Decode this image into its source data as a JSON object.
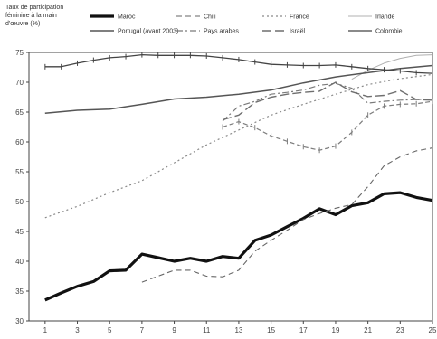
{
  "chart_data": {
    "type": "line",
    "ylabel_lines": [
      "Taux de participation",
      "féminine à la main",
      "d'œuvre (%)"
    ],
    "y_ticks": [
      "30",
      "35",
      "40",
      "45",
      "50",
      "55",
      "60",
      "65",
      "70",
      "75"
    ],
    "x_ticks": [
      "1",
      "3",
      "5",
      "7",
      "9",
      "11",
      "13",
      "15",
      "17",
      "19",
      "21",
      "23",
      "25"
    ],
    "ylim": [
      30,
      75
    ],
    "xlim": [
      0,
      25
    ],
    "grid": false,
    "legend_position": "top",
    "series": [
      {
        "name": "Maroc",
        "color": "#111111",
        "style": "solid-thick",
        "x": [
          1,
          2,
          3,
          4,
          5,
          6,
          7,
          8,
          9,
          10,
          11,
          12,
          13,
          14,
          15,
          16,
          17,
          18,
          19,
          20,
          21,
          22,
          23,
          24,
          25
        ],
        "y": [
          33.5,
          34.7,
          35.8,
          36.6,
          38.4,
          38.5,
          41.2,
          40.6,
          40.0,
          40.5,
          40.0,
          40.8,
          40.5,
          43.5,
          44.4,
          45.8,
          47.2,
          48.8,
          47.8,
          49.3,
          49.8,
          51.3,
          51.5,
          50.7,
          50.2
        ]
      },
      {
        "name": "Chili",
        "color": "#666666",
        "style": "dash",
        "x": [
          7,
          8,
          9,
          10,
          11,
          12,
          13,
          14,
          15,
          16,
          17,
          18,
          19,
          20,
          21,
          22,
          23,
          24,
          25
        ],
        "y": [
          36.5,
          37.5,
          38.5,
          38.5,
          37.5,
          37.4,
          38.5,
          41.7,
          43.5,
          45.2,
          47.0,
          48.0,
          48.9,
          49.5,
          52.5,
          56.0,
          57.5,
          58.5,
          59.0
        ]
      },
      {
        "name": "France",
        "color": "#8a8a8a",
        "style": "dot",
        "x": [
          1,
          3,
          5,
          7,
          9,
          11,
          13,
          15,
          17,
          19,
          21,
          23,
          25
        ],
        "y": [
          47.3,
          49.2,
          51.5,
          53.5,
          56.5,
          59.5,
          62.0,
          64.5,
          66.3,
          68.0,
          69.6,
          70.6,
          71.3
        ]
      },
      {
        "name": "Irlande",
        "color": "#b0b0b0",
        "style": "solid-thin",
        "x": [
          20,
          21,
          22,
          23,
          24,
          25
        ],
        "y": [
          70.5,
          72.0,
          73.2,
          74.0,
          74.5,
          74.6
        ]
      },
      {
        "name": "Portugal (avant 2003)",
        "color": "#555555",
        "style": "solid",
        "x": [
          1,
          3,
          5,
          7,
          9,
          11,
          13,
          15,
          17,
          19,
          21,
          23,
          25
        ],
        "y": [
          64.8,
          65.3,
          65.5,
          66.3,
          67.2,
          67.5,
          68.0,
          68.7,
          69.9,
          70.9,
          71.6,
          72.3,
          72.8
        ]
      },
      {
        "name": "Pays arabes",
        "color": "#7a7a7a",
        "style": "dashdot",
        "x": [
          12,
          13,
          14,
          15,
          16,
          17,
          18,
          19,
          20,
          21,
          22,
          23,
          24,
          25
        ],
        "y": [
          63.5,
          66.0,
          66.8,
          68.0,
          68.3,
          68.7,
          69.5,
          69.8,
          69.0,
          66.5,
          66.8,
          67.0,
          67.1,
          67.2
        ]
      },
      {
        "name": "Israël",
        "color": "#6e6e6e",
        "style": "longdash",
        "x": [
          12,
          13,
          14,
          15,
          16,
          17,
          18,
          19,
          20,
          21,
          22,
          23,
          24,
          25
        ],
        "y": [
          63.7,
          64.5,
          66.6,
          67.5,
          68.0,
          68.3,
          68.5,
          70.0,
          68.4,
          67.6,
          67.8,
          68.6,
          67.1,
          67.0
        ]
      },
      {
        "name": "Colombie",
        "color": "#444444",
        "style": "marker-line",
        "x": [
          1,
          2,
          3,
          4,
          5,
          6,
          7,
          8,
          9,
          10,
          11,
          12,
          13,
          14,
          15,
          16,
          17,
          18,
          19,
          20,
          21,
          22,
          23,
          24,
          25
        ],
        "y": [
          72.6,
          72.6,
          73.2,
          73.7,
          74.1,
          74.3,
          74.6,
          74.5,
          74.5,
          74.5,
          74.4,
          74.1,
          73.8,
          73.4,
          73.0,
          72.9,
          72.8,
          72.8,
          72.9,
          72.6,
          72.3,
          72.1,
          71.9,
          71.6,
          71.5
        ]
      },
      {
        "name": "",
        "color": "#7d7d7d",
        "style": "dash-marker",
        "x": [
          12,
          13,
          14,
          15,
          16,
          17,
          18,
          19,
          20,
          21,
          22,
          23,
          24,
          25
        ],
        "y": [
          62.5,
          63.4,
          62.4,
          61.0,
          60.1,
          59.2,
          58.6,
          59.3,
          61.6,
          64.5,
          66.0,
          66.3,
          66.4,
          66.8
        ]
      }
    ]
  }
}
